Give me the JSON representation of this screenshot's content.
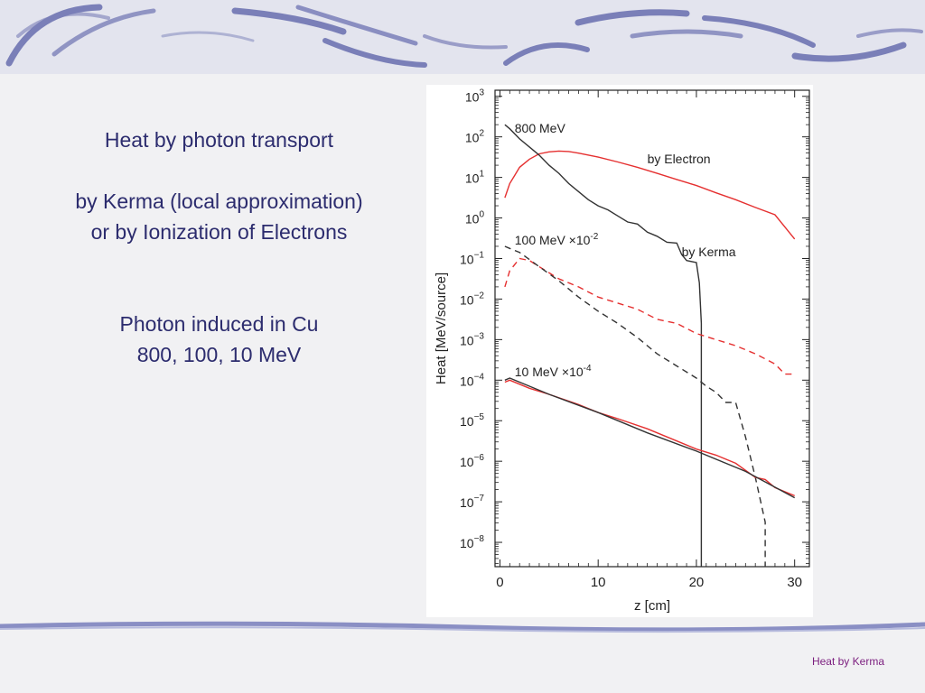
{
  "slide": {
    "lines": [
      "Heat by photon transport",
      "by Kerma (local approximation)",
      "or by Ionization of Electrons",
      "Photon induced in Cu",
      "800, 100, 10 MeV"
    ],
    "footer": "Heat by Kerma",
    "colors": {
      "title_text": "#2c2c6e",
      "footer_text": "#7b1d7e",
      "banner_stroke": "#7a7fb8"
    }
  },
  "chart_data": {
    "type": "line",
    "xlabel": "z [cm]",
    "ylabel": "Heat [MeV/source]",
    "xlim": [
      0,
      30
    ],
    "ylim_log10": [
      -9,
      3
    ],
    "yscale": "log",
    "x_ticks": [
      "0",
      "10",
      "20",
      "30"
    ],
    "y_ticks": [
      {
        "base": "10",
        "exp": "3"
      },
      {
        "base": "10",
        "exp": "2"
      },
      {
        "base": "10",
        "exp": "1"
      },
      {
        "base": "10",
        "exp": "0"
      },
      {
        "base": "10",
        "exp": "−1"
      },
      {
        "base": "10",
        "exp": "−2"
      },
      {
        "base": "10",
        "exp": "−3"
      },
      {
        "base": "10",
        "exp": "−4"
      },
      {
        "base": "10",
        "exp": "−5"
      },
      {
        "base": "10",
        "exp": "−6"
      },
      {
        "base": "10",
        "exp": "−7"
      },
      {
        "base": "10",
        "exp": "−8"
      }
    ],
    "annotations": [
      {
        "text": "800 MeV",
        "sup": ""
      },
      {
        "text": "by Electron",
        "sup": ""
      },
      {
        "text": "100 MeV  ×10",
        "sup": "-2"
      },
      {
        "text": "by Kerma",
        "sup": ""
      },
      {
        "text": "10 MeV  ×10",
        "sup": "-4"
      }
    ],
    "series": [
      {
        "style": "red solid",
        "color": "#e53030",
        "dash": false,
        "points": [
          [
            0.5,
            0.5
          ],
          [
            1,
            0.85
          ],
          [
            1.5,
            1.05
          ],
          [
            2,
            1.25
          ],
          [
            3,
            1.45
          ],
          [
            4,
            1.58
          ],
          [
            5,
            1.63
          ],
          [
            6,
            1.65
          ],
          [
            7,
            1.64
          ],
          [
            8,
            1.6
          ],
          [
            10,
            1.5
          ],
          [
            12,
            1.38
          ],
          [
            14,
            1.25
          ],
          [
            16,
            1.1
          ],
          [
            18,
            0.95
          ],
          [
            20,
            0.8
          ],
          [
            22,
            0.62
          ],
          [
            24,
            0.45
          ],
          [
            26,
            0.26
          ],
          [
            28,
            0.08
          ],
          [
            30,
            -0.52
          ]
        ]
      },
      {
        "style": "black solid",
        "color": "#333333",
        "dash": false,
        "points": [
          [
            0.5,
            2.3
          ],
          [
            1,
            2.2
          ],
          [
            2,
            1.95
          ],
          [
            3,
            1.75
          ],
          [
            4,
            1.55
          ],
          [
            5,
            1.3
          ],
          [
            6,
            1.1
          ],
          [
            7,
            0.85
          ],
          [
            8,
            0.65
          ],
          [
            9,
            0.45
          ],
          [
            10,
            0.3
          ],
          [
            11,
            0.2
          ],
          [
            12,
            0.05
          ],
          [
            13,
            -0.1
          ],
          [
            14,
            -0.15
          ],
          [
            15,
            -0.35
          ],
          [
            16,
            -0.45
          ],
          [
            17,
            -0.6
          ],
          [
            18,
            -0.62
          ],
          [
            18.5,
            -0.9
          ],
          [
            19,
            -1.05
          ],
          [
            20,
            -1.1
          ],
          [
            20.3,
            -1.6
          ],
          [
            20.5,
            -2.6
          ],
          [
            20.5,
            -9
          ]
        ]
      },
      {
        "style": "red dashed",
        "color": "#e53030",
        "dash": true,
        "points": [
          [
            0.5,
            -1.7
          ],
          [
            1,
            -1.3
          ],
          [
            2,
            -1.0
          ],
          [
            3,
            -1.05
          ],
          [
            4,
            -1.2
          ],
          [
            6,
            -1.5
          ],
          [
            8,
            -1.7
          ],
          [
            10,
            -1.95
          ],
          [
            12,
            -2.1
          ],
          [
            14,
            -2.25
          ],
          [
            16,
            -2.5
          ],
          [
            18,
            -2.6
          ],
          [
            20,
            -2.85
          ],
          [
            22,
            -3.0
          ],
          [
            24,
            -3.15
          ],
          [
            26,
            -3.35
          ],
          [
            28,
            -3.6
          ],
          [
            29,
            -3.85
          ],
          [
            30,
            -3.85
          ]
        ]
      },
      {
        "style": "black dashed",
        "color": "#333333",
        "dash": true,
        "points": [
          [
            0.5,
            -0.7
          ],
          [
            1,
            -0.75
          ],
          [
            2,
            -0.85
          ],
          [
            4,
            -1.2
          ],
          [
            6,
            -1.55
          ],
          [
            8,
            -1.95
          ],
          [
            10,
            -2.3
          ],
          [
            12,
            -2.6
          ],
          [
            14,
            -2.95
          ],
          [
            16,
            -3.35
          ],
          [
            18,
            -3.65
          ],
          [
            20,
            -3.95
          ],
          [
            21,
            -4.15
          ],
          [
            22,
            -4.3
          ],
          [
            23,
            -4.55
          ],
          [
            24,
            -4.55
          ],
          [
            25,
            -5.4
          ],
          [
            26,
            -6.4
          ],
          [
            27,
            -7.5
          ],
          [
            27,
            -9
          ]
        ]
      },
      {
        "style": "red solid 10 MeV",
        "color": "#e53030",
        "dash": false,
        "points": [
          [
            0.5,
            -4.05
          ],
          [
            1,
            -4.0
          ],
          [
            3,
            -4.2
          ],
          [
            5,
            -4.35
          ],
          [
            8,
            -4.6
          ],
          [
            10,
            -4.8
          ],
          [
            12,
            -4.95
          ],
          [
            15,
            -5.2
          ],
          [
            18,
            -5.5
          ],
          [
            20,
            -5.7
          ],
          [
            22,
            -5.85
          ],
          [
            24,
            -6.05
          ],
          [
            26,
            -6.4
          ],
          [
            27,
            -6.45
          ],
          [
            28,
            -6.65
          ],
          [
            29,
            -6.75
          ],
          [
            30,
            -6.85
          ]
        ]
      },
      {
        "style": "black solid 10 MeV",
        "color": "#333333",
        "dash": false,
        "points": [
          [
            0.5,
            -4.0
          ],
          [
            1,
            -3.95
          ],
          [
            3,
            -4.15
          ],
          [
            5,
            -4.35
          ],
          [
            10,
            -4.8
          ],
          [
            15,
            -5.3
          ],
          [
            20,
            -5.75
          ],
          [
            25,
            -6.25
          ],
          [
            30,
            -6.9
          ]
        ]
      }
    ]
  }
}
